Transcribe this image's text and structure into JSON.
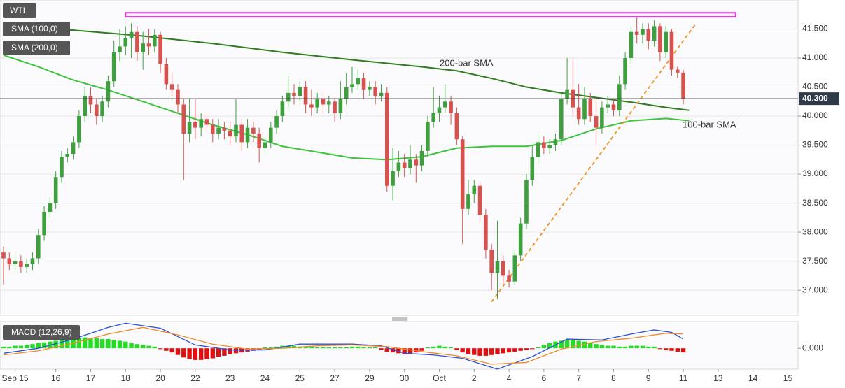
{
  "chart_data": [
    {
      "type": "candlestick",
      "instrument": "WTI",
      "xlim": [
        -0.6,
        136.75
      ],
      "xticks": [
        {
          "value": 2,
          "label": "Sep 15"
        },
        {
          "value": 9,
          "label": "16"
        },
        {
          "value": 15,
          "label": "17"
        },
        {
          "value": 21,
          "label": "18"
        },
        {
          "value": 27,
          "label": "20"
        },
        {
          "value": 33,
          "label": "22"
        },
        {
          "value": 39,
          "label": "23"
        },
        {
          "value": 45,
          "label": "24"
        },
        {
          "value": 51,
          "label": "25"
        },
        {
          "value": 57,
          "label": "27"
        },
        {
          "value": 63,
          "label": "29"
        },
        {
          "value": 69,
          "label": "30"
        },
        {
          "value": 75,
          "label": "Oct"
        },
        {
          "value": 81,
          "label": "2"
        },
        {
          "value": 87,
          "label": "4"
        },
        {
          "value": 93,
          "label": "6"
        },
        {
          "value": 99,
          "label": "7"
        },
        {
          "value": 105,
          "label": "8"
        },
        {
          "value": 111,
          "label": "9"
        },
        {
          "value": 117,
          "label": "11"
        },
        {
          "value": 123,
          "label": "13"
        },
        {
          "value": 129,
          "label": "14"
        },
        {
          "value": 135,
          "label": "15"
        }
      ],
      "ylim": [
        36.58,
        42.0
      ],
      "yticks": [
        {
          "value": 37,
          "label": "37.000"
        },
        {
          "value": 37.5,
          "label": "37.500"
        },
        {
          "value": 38,
          "label": "38.000"
        },
        {
          "value": 38.5,
          "label": "38.500"
        },
        {
          "value": 39,
          "label": "39.000"
        },
        {
          "value": 39.5,
          "label": "39.500"
        },
        {
          "value": 40,
          "label": "40.000"
        },
        {
          "value": 40.5,
          "label": "40.500"
        },
        {
          "value": 41,
          "label": "41.000"
        },
        {
          "value": 41.5,
          "label": "41.500"
        }
      ],
      "grid": true,
      "x": [
        0,
        1,
        2,
        3,
        4,
        5,
        6,
        7,
        8,
        9,
        10,
        11,
        12,
        13,
        14,
        15,
        16,
        17,
        18,
        19,
        20,
        21,
        22,
        23,
        24,
        25,
        26,
        27,
        28,
        29,
        30,
        31,
        32,
        33,
        34,
        35,
        36,
        37,
        38,
        39,
        40,
        41,
        42,
        43,
        44,
        45,
        46,
        47,
        48,
        49,
        50,
        51,
        52,
        53,
        54,
        55,
        56,
        57,
        58,
        59,
        60,
        61,
        62,
        63,
        64,
        65,
        66,
        67,
        68,
        69,
        70,
        71,
        72,
        73,
        74,
        75,
        76,
        77,
        78,
        79,
        80,
        81,
        82,
        83,
        84,
        85,
        86,
        87,
        88,
        89,
        90,
        91,
        92,
        93,
        94,
        95,
        96,
        97,
        98,
        99,
        100,
        101,
        102,
        103,
        104,
        105,
        106,
        107,
        108,
        109,
        110,
        111,
        112,
        113,
        114,
        115,
        116,
        117
      ],
      "up_color": "#3f9f3f",
      "down_color": "#d6524e",
      "open": [
        37.65,
        37.55,
        37.45,
        37.5,
        37.4,
        37.45,
        37.55,
        37.95,
        38.35,
        38.5,
        38.95,
        39.3,
        39.35,
        39.55,
        40.0,
        40.35,
        40.2,
        40.0,
        40.25,
        40.6,
        41.1,
        41.2,
        41.35,
        41.45,
        41.1,
        41.25,
        41.2,
        41.4,
        40.9,
        40.55,
        40.45,
        40.2,
        39.7,
        39.9,
        39.8,
        39.95,
        39.85,
        39.7,
        39.8,
        39.75,
        39.65,
        39.85,
        39.55,
        39.8,
        39.7,
        39.45,
        39.55,
        39.8,
        40.0,
        40.25,
        40.4,
        40.35,
        40.5,
        40.2,
        40.15,
        40.3,
        40.2,
        40.25,
        40.05,
        40.3,
        40.5,
        40.55,
        40.65,
        40.45,
        40.5,
        40.35,
        40.4,
        38.8,
        39.05,
        39.2,
        39.1,
        39.25,
        39.15,
        39.4,
        39.9,
        40.05,
        40.15,
        40.25,
        40.05,
        39.6,
        38.4,
        38.65,
        38.8,
        38.3,
        37.7,
        37.3,
        37.5,
        37.25,
        37.15,
        37.6,
        38.15,
        38.9,
        39.3,
        39.55,
        39.45,
        39.5,
        39.6,
        40.3,
        40.45,
        40.15,
        39.95,
        40.3,
        40.0,
        39.8,
        40.15,
        40.2,
        40.1,
        40.55,
        41.0,
        41.45,
        41.4,
        41.5,
        41.3,
        41.55,
        41.1,
        41.45,
        40.8,
        40.75
      ],
      "high": [
        37.75,
        37.65,
        37.6,
        37.6,
        37.55,
        37.65,
        38.05,
        38.45,
        38.6,
        39.05,
        39.4,
        39.45,
        39.65,
        40.1,
        40.5,
        40.5,
        40.3,
        40.35,
        40.7,
        41.3,
        41.5,
        41.55,
        41.6,
        41.55,
        41.45,
        41.5,
        41.5,
        41.45,
        41.0,
        40.75,
        40.55,
        40.3,
        40.3,
        40.3,
        40.05,
        40.05,
        39.95,
        39.95,
        39.9,
        39.9,
        40.3,
        39.95,
        39.95,
        39.9,
        39.8,
        39.65,
        39.9,
        40.1,
        40.35,
        40.7,
        40.55,
        40.6,
        40.6,
        40.45,
        40.4,
        40.4,
        40.35,
        40.3,
        40.6,
        40.75,
        40.85,
        40.8,
        40.75,
        40.6,
        40.6,
        40.55,
        40.5,
        39.45,
        39.4,
        39.35,
        39.5,
        39.35,
        39.5,
        40.0,
        40.5,
        40.35,
        40.55,
        40.35,
        40.15,
        39.65,
        38.9,
        38.9,
        38.85,
        38.4,
        37.8,
        38.2,
        37.6,
        37.35,
        37.7,
        38.25,
        39.0,
        39.5,
        39.7,
        39.65,
        39.6,
        39.7,
        40.4,
        41.0,
        41.0,
        40.55,
        40.5,
        40.4,
        40.3,
        40.25,
        40.35,
        40.3,
        40.7,
        41.1,
        41.55,
        41.7,
        41.6,
        41.6,
        41.65,
        41.6,
        41.55,
        41.5,
        40.85,
        40.8
      ],
      "low": [
        37.1,
        37.35,
        37.35,
        37.3,
        37.3,
        37.35,
        37.45,
        37.85,
        38.25,
        38.4,
        38.85,
        39.2,
        39.25,
        39.45,
        39.9,
        40.05,
        39.85,
        39.9,
        40.15,
        40.5,
        40.95,
        41.05,
        41.0,
        40.95,
        40.8,
        41.05,
        41.1,
        40.75,
        40.45,
        40.35,
        40.05,
        38.9,
        39.55,
        39.6,
        39.65,
        39.75,
        39.55,
        39.6,
        39.6,
        39.5,
        39.55,
        39.4,
        39.45,
        39.55,
        39.2,
        39.35,
        39.45,
        39.7,
        39.9,
        40.15,
        40.2,
        40.25,
        40.05,
        40.0,
        40.05,
        40.05,
        40.05,
        39.9,
        39.95,
        40.2,
        40.4,
        40.45,
        40.3,
        40.35,
        40.2,
        40.25,
        38.7,
        38.55,
        38.95,
        38.95,
        39.0,
        38.85,
        39.05,
        39.3,
        39.8,
        39.9,
        40.05,
        39.85,
        39.5,
        37.8,
        38.3,
        38.5,
        38.15,
        37.55,
        37.0,
        36.85,
        37.1,
        37.05,
        37.1,
        37.5,
        38.05,
        38.8,
        39.2,
        39.35,
        39.35,
        39.4,
        39.5,
        40.2,
        40.0,
        39.85,
        39.85,
        39.9,
        39.5,
        39.7,
        40.05,
        40.0,
        40.0,
        40.45,
        40.9,
        41.25,
        41.25,
        41.15,
        41.2,
        40.95,
        41.0,
        40.7,
        40.65,
        40.2
      ],
      "close": [
        37.55,
        37.45,
        37.5,
        37.4,
        37.45,
        37.55,
        37.95,
        38.35,
        38.5,
        38.95,
        39.3,
        39.35,
        39.55,
        40.0,
        40.35,
        40.2,
        40.0,
        40.25,
        40.6,
        41.1,
        41.2,
        41.35,
        41.45,
        41.1,
        41.25,
        41.2,
        41.4,
        40.9,
        40.55,
        40.45,
        40.2,
        39.7,
        39.9,
        39.8,
        39.95,
        39.85,
        39.7,
        39.8,
        39.75,
        39.65,
        39.85,
        39.55,
        39.8,
        39.7,
        39.45,
        39.55,
        39.8,
        40.0,
        40.25,
        40.4,
        40.35,
        40.5,
        40.2,
        40.15,
        40.3,
        40.2,
        40.25,
        40.05,
        40.3,
        40.5,
        40.55,
        40.65,
        40.45,
        40.5,
        40.35,
        40.4,
        38.8,
        39.05,
        39.2,
        39.1,
        39.25,
        39.15,
        39.4,
        39.9,
        40.05,
        40.15,
        40.25,
        40.05,
        39.6,
        38.4,
        38.65,
        38.8,
        38.3,
        37.7,
        37.3,
        37.5,
        37.25,
        37.15,
        37.6,
        38.15,
        38.9,
        39.3,
        39.55,
        39.45,
        39.5,
        39.6,
        40.3,
        40.45,
        40.15,
        39.95,
        40.3,
        40.0,
        39.8,
        40.15,
        40.2,
        40.1,
        40.55,
        41.0,
        41.45,
        41.4,
        41.5,
        41.3,
        41.55,
        41.1,
        41.45,
        40.8,
        40.75,
        40.3
      ],
      "series": [
        {
          "name": "SMA (100,0)",
          "annotation": "100-bar SMA",
          "color": "#3ec43e",
          "x": [
            0,
            6,
            12,
            18,
            24,
            30,
            36,
            42,
            48,
            54,
            60,
            66,
            72,
            78,
            84,
            90,
            96,
            102,
            108,
            114,
            118
          ],
          "values": [
            41.05,
            40.85,
            40.62,
            40.45,
            40.25,
            40.05,
            39.85,
            39.68,
            39.48,
            39.38,
            39.28,
            39.25,
            39.3,
            39.45,
            39.48,
            39.48,
            39.58,
            39.78,
            39.92,
            39.96,
            39.92
          ]
        },
        {
          "name": "SMA (200,0)",
          "annotation": "200-bar SMA",
          "color": "#2f7d1f",
          "x": [
            0,
            12,
            24,
            36,
            48,
            60,
            72,
            78,
            84,
            90,
            96,
            102,
            108,
            114,
            118
          ],
          "values": [
            41.55,
            41.48,
            41.38,
            41.25,
            41.1,
            40.97,
            40.85,
            40.78,
            40.65,
            40.5,
            40.4,
            40.32,
            40.24,
            40.15,
            40.1
          ]
        }
      ],
      "levels": [
        {
          "from": 21,
          "to": 126,
          "low": 41.71,
          "high": 41.78,
          "color": "#e030e0"
        }
      ],
      "trendline": {
        "x": [
          84,
          119
        ],
        "values": [
          36.8,
          41.57
        ],
        "color": "#f09a30"
      },
      "last": {
        "value": 40.3,
        "label": "40.300"
      }
    },
    {
      "type": "macd",
      "label": "MACD (12,26,9)",
      "ylim": [
        -0.25,
        0.32
      ],
      "yticks": [
        {
          "value": 0,
          "label": "0.000"
        }
      ],
      "histogram": {
        "positive_color": "#22dd22",
        "negative_color": "#dd1111",
        "values": [
          0.02,
          0.02,
          0.03,
          0.03,
          0.04,
          0.05,
          0.06,
          0.07,
          0.08,
          0.09,
          0.1,
          0.1,
          0.11,
          0.12,
          0.13,
          0.12,
          0.12,
          0.11,
          0.11,
          0.1,
          0.09,
          0.08,
          0.06,
          0.05,
          0.04,
          0.03,
          0.02,
          -0.01,
          -0.03,
          -0.05,
          -0.08,
          -0.11,
          -0.13,
          -0.14,
          -0.14,
          -0.13,
          -0.12,
          -0.1,
          -0.09,
          -0.07,
          -0.06,
          -0.05,
          -0.04,
          -0.03,
          -0.02,
          0.01,
          0.01,
          0.02,
          0.03,
          0.03,
          0.03,
          0.02,
          0.02,
          0.02,
          0.01,
          0.01,
          0.01,
          0.01,
          0.01,
          0.01,
          0.02,
          0.02,
          0.01,
          0.01,
          0.01,
          -0.02,
          -0.04,
          -0.05,
          -0.06,
          -0.07,
          -0.06,
          -0.05,
          -0.03,
          0.01,
          0.02,
          0.03,
          0.02,
          0.01,
          -0.02,
          -0.05,
          -0.07,
          -0.08,
          -0.09,
          -0.09,
          -0.08,
          -0.07,
          -0.06,
          -0.05,
          -0.04,
          -0.03,
          -0.02,
          -0.01,
          0.01,
          0.04,
          0.06,
          0.08,
          0.09,
          0.1,
          0.1,
          0.09,
          0.08,
          0.07,
          0.05,
          0.04,
          0.03,
          0.03,
          0.02,
          0.02,
          0.03,
          0.03,
          0.03,
          0.02,
          0.02,
          -0.01,
          -0.02,
          -0.03,
          -0.04,
          -0.05
        ]
      },
      "series": [
        {
          "color": "#2a52d6",
          "x": [
            0,
            6,
            12,
            18,
            21,
            27,
            33,
            39,
            45,
            51,
            60,
            65,
            69,
            74,
            79,
            85,
            91,
            97,
            103,
            108,
            112,
            115,
            117
          ],
          "values": [
            -0.06,
            0.0,
            0.11,
            0.25,
            0.3,
            0.24,
            0.04,
            -0.02,
            -0.02,
            0.05,
            0.05,
            0.03,
            -0.06,
            -0.08,
            -0.12,
            -0.25,
            -0.1,
            0.11,
            0.1,
            0.17,
            0.22,
            0.19,
            0.11
          ]
        },
        {
          "color": "#f08a28",
          "x": [
            0,
            6,
            12,
            18,
            24,
            30,
            36,
            42,
            48,
            54,
            60,
            66,
            72,
            78,
            84,
            90,
            96,
            102,
            108,
            114,
            117
          ],
          "values": [
            -0.08,
            -0.03,
            0.06,
            0.17,
            0.25,
            0.16,
            0.05,
            -0.01,
            0.0,
            0.03,
            0.04,
            0.02,
            -0.04,
            -0.09,
            -0.19,
            -0.17,
            -0.01,
            0.08,
            0.12,
            0.18,
            0.17
          ]
        }
      ]
    }
  ]
}
